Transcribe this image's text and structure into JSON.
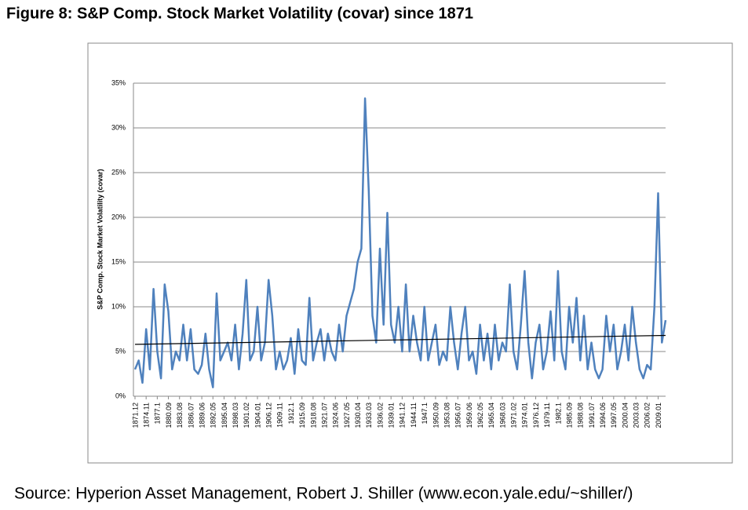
{
  "chart_data": {
    "type": "line",
    "title": "Figure 8: S&P Comp. Stock Market Volatility (covar) since 1871",
    "y_axis_label": "S&P Comp. Stock Market Volatility  (covar)",
    "source": "Source: Hyperion Asset Management, Robert J. Shiller (www.econ.yale.edu/~shiller/)",
    "color": "#4f81bd",
    "grid": true,
    "ylim": [
      0,
      35
    ],
    "yticks": [
      {
        "value": 0,
        "label": "0%"
      },
      {
        "value": 5,
        "label": "5%"
      },
      {
        "value": 10,
        "label": "10%"
      },
      {
        "value": 15,
        "label": "15%"
      },
      {
        "value": 20,
        "label": "20%"
      },
      {
        "value": 25,
        "label": "25%"
      },
      {
        "value": 30,
        "label": "30%"
      },
      {
        "value": 35,
        "label": "35%"
      }
    ],
    "categories": [
      "1871.12",
      null,
      null,
      "1874.11",
      null,
      null,
      "1877.1",
      null,
      null,
      "1880.09",
      null,
      null,
      "1883.08",
      null,
      null,
      "1886.07",
      null,
      null,
      "1889.06",
      null,
      null,
      "1892.05",
      null,
      null,
      "1895.04",
      null,
      null,
      "1898.03",
      null,
      null,
      "1901.02",
      null,
      null,
      "1904.01",
      null,
      null,
      "1906.12",
      null,
      null,
      "1909.11",
      null,
      null,
      "1912.1",
      null,
      null,
      "1915.09",
      null,
      null,
      "1918.08",
      null,
      null,
      "1921.07",
      null,
      null,
      "1924.06",
      null,
      null,
      "1927.05",
      null,
      null,
      "1930.04",
      null,
      null,
      "1933.03",
      null,
      null,
      "1936.02",
      null,
      null,
      "1939.01",
      null,
      null,
      "1941.12",
      null,
      null,
      "1944.11",
      null,
      null,
      "1947.1",
      null,
      null,
      "1950.09",
      null,
      null,
      "1953.08",
      null,
      null,
      "1956.07",
      null,
      null,
      "1959.06",
      null,
      null,
      "1962.05",
      null,
      null,
      "1965.04",
      null,
      null,
      "1968.03",
      null,
      null,
      "1971.02",
      null,
      null,
      "1974.01",
      null,
      null,
      "1976.12",
      null,
      null,
      "1979.11",
      null,
      null,
      "1982.1",
      null,
      null,
      "1985.09",
      null,
      null,
      "1988.08",
      null,
      null,
      "1991.07",
      null,
      null,
      "1994.06",
      null,
      null,
      "1997.05",
      null,
      null,
      "2000.04",
      null,
      null,
      "2003.03",
      null,
      null,
      "2006.02",
      null,
      null,
      "2009.01",
      null,
      null
    ],
    "values": [
      3,
      4,
      1.5,
      7.5,
      3,
      12,
      5,
      2,
      12.5,
      9.5,
      3,
      5,
      4,
      8,
      4,
      7.5,
      3,
      2.5,
      3.5,
      7,
      3,
      1,
      11.5,
      4,
      5,
      6,
      4,
      8,
      3,
      7,
      13,
      4,
      5,
      10,
      4,
      6,
      13,
      9,
      3,
      5,
      3,
      4,
      6.5,
      2.5,
      7.5,
      4,
      3.5,
      11,
      4,
      6,
      7.5,
      4,
      7,
      5,
      4,
      8,
      5,
      9,
      10.5,
      12,
      15,
      16.5,
      33.3,
      23,
      9,
      6,
      16.5,
      8,
      20.5,
      8,
      6,
      10,
      5,
      12.5,
      5,
      9,
      6,
      4,
      10,
      4,
      6,
      8,
      3.5,
      5,
      4,
      10,
      6,
      3,
      7,
      10,
      4,
      5,
      2.5,
      8,
      4,
      7,
      3,
      8,
      4,
      6,
      5,
      12.5,
      5,
      3,
      8,
      14,
      6,
      2,
      6,
      8,
      3,
      5,
      9.5,
      4,
      14,
      5,
      3,
      10,
      6,
      11,
      4,
      9,
      3,
      6,
      3,
      2,
      3,
      9,
      5,
      8,
      3,
      5,
      8,
      4,
      10,
      6,
      3,
      2,
      3.5,
      3,
      10,
      22.7,
      6,
      8.5
    ],
    "trend": {
      "color": "#000000",
      "values": [
        5.8,
        6.8
      ]
    }
  }
}
